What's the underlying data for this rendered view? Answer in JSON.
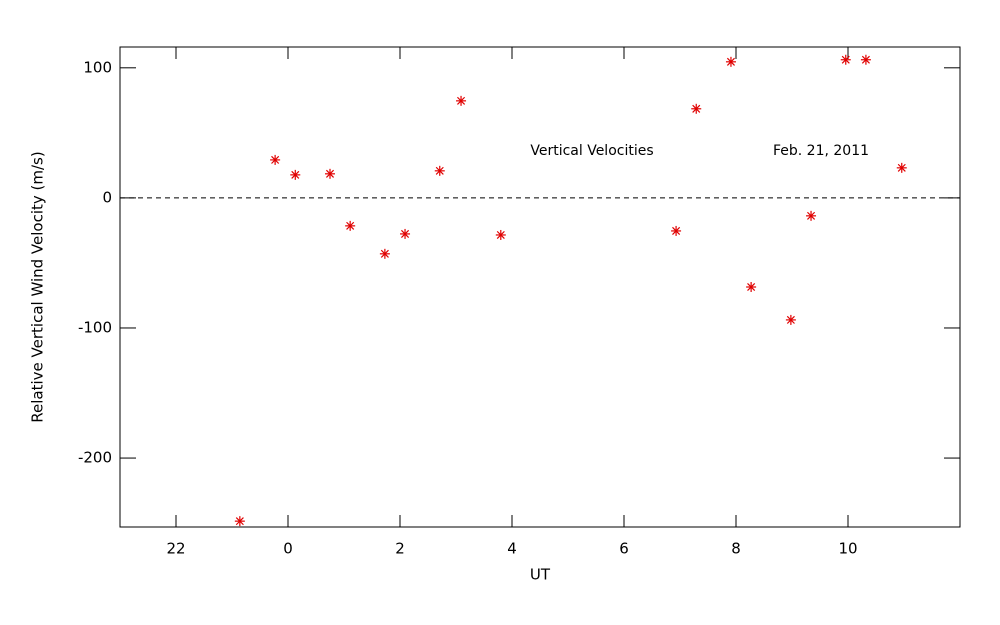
{
  "chart_data": {
    "type": "scatter",
    "y_label": "Relative Vertical Wind Velocity (m/s)",
    "x_label": "UT",
    "annotations": [
      "Vertical Velocities",
      "Feb. 21, 2011"
    ],
    "xlim": [
      -3,
      12
    ],
    "xticks": [
      {
        "value": -2,
        "label": "22"
      },
      0,
      2,
      4,
      6,
      8,
      10
    ],
    "ylim": [
      -253,
      116
    ],
    "yticks": [
      -200,
      -100,
      0,
      100
    ],
    "hline": 0,
    "color": "#e00000",
    "x": [
      -0.86,
      -0.23,
      0.13,
      0.75,
      1.11,
      1.73,
      2.09,
      2.71,
      3.09,
      3.8,
      6.93,
      7.29,
      7.91,
      8.27,
      8.98,
      9.34,
      9.96,
      10.32,
      10.96
    ],
    "values": [
      -248.5,
      29.2,
      17.7,
      18.5,
      -21.5,
      -43,
      -27.7,
      20.8,
      74.6,
      -28.5,
      -25.4,
      68.5,
      104.6,
      -68.5,
      -93.8,
      -13.8,
      106.2,
      106.2,
      23.1
    ]
  }
}
